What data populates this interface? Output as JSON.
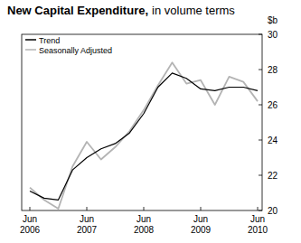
{
  "chart_data": {
    "type": "line",
    "title": "New Capital Expenditure,",
    "subtitle": "in volume terms",
    "y_label": "$b",
    "categories": [
      "Jun 2006",
      null,
      null,
      null,
      "Jun 2007",
      null,
      null,
      null,
      "Jun 2008",
      null,
      null,
      null,
      "Jun 2009",
      null,
      null,
      null,
      "Jun 2010"
    ],
    "series": [
      {
        "name": "Trend",
        "color": "#000000",
        "values": [
          21.1,
          20.7,
          20.6,
          22.3,
          23.0,
          23.5,
          23.8,
          24.4,
          25.5,
          27.0,
          27.8,
          27.5,
          26.9,
          26.8,
          27.0,
          27.0,
          26.8
        ]
      },
      {
        "name": "Seasonally Adjusted",
        "color": "#b4b4b4",
        "values": [
          21.3,
          20.6,
          20.1,
          22.5,
          23.9,
          22.9,
          23.6,
          24.5,
          25.7,
          27.1,
          28.4,
          27.2,
          27.4,
          26.0,
          27.6,
          27.3,
          26.2
        ]
      }
    ],
    "ylim": [
      20,
      30
    ],
    "yticks": [
      20,
      22,
      24,
      26,
      28,
      30
    ],
    "legend": "top-left",
    "grid": false
  }
}
